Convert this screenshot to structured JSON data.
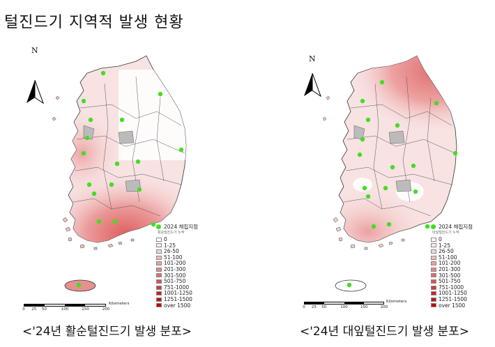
{
  "title": "털진드기 지역적 발생 현황",
  "maps": [
    {
      "id": "left",
      "caption": "<'24년 활순털진드기 발생 분포>",
      "north": "N",
      "legend_point": "2024 채집지점",
      "legend_sub": "활순털진드기 누적",
      "classes": [
        "0",
        "1-25",
        "26-50",
        "51-100",
        "101-200",
        "201-300",
        "301-500",
        "501-750",
        "751-1000",
        "1001-1250",
        "1251-1500",
        "over 1500"
      ],
      "class_colors": [
        "#ffffff",
        "#fbeaea",
        "#f6d4d4",
        "#f0bcbc",
        "#eaa2a2",
        "#e48888",
        "#de6e6e",
        "#d85454",
        "#d23a3a",
        "#cc2222",
        "#c61010",
        "#c00000"
      ],
      "scale_label": "Kilometers",
      "scale_ticks": [
        "0",
        "25",
        "50",
        "100",
        "150",
        "200"
      ],
      "point_color": "#44dd22"
    },
    {
      "id": "right",
      "caption": "<'24년 대잎털진드기 발생 분포>",
      "north": "N",
      "legend_point": "2024 채집지점",
      "legend_sub": "대잎털진드기 누적",
      "classes": [
        "0",
        "1-25",
        "26-50",
        "51-100",
        "101-200",
        "201-300",
        "301-500",
        "501-750",
        "751-1000",
        "1001-1250",
        "1251-1500",
        "over 1500"
      ],
      "class_colors": [
        "#ffffff",
        "#fbeaea",
        "#f6d4d4",
        "#f0bcbc",
        "#eaa2a2",
        "#e48888",
        "#de6e6e",
        "#d85454",
        "#d23a3a",
        "#cc2222",
        "#c61010",
        "#c00000"
      ],
      "scale_label": "Kilometers",
      "scale_ticks": [
        "0",
        "25",
        "50",
        "100",
        "150",
        "200"
      ],
      "point_color": "#44dd22"
    }
  ]
}
